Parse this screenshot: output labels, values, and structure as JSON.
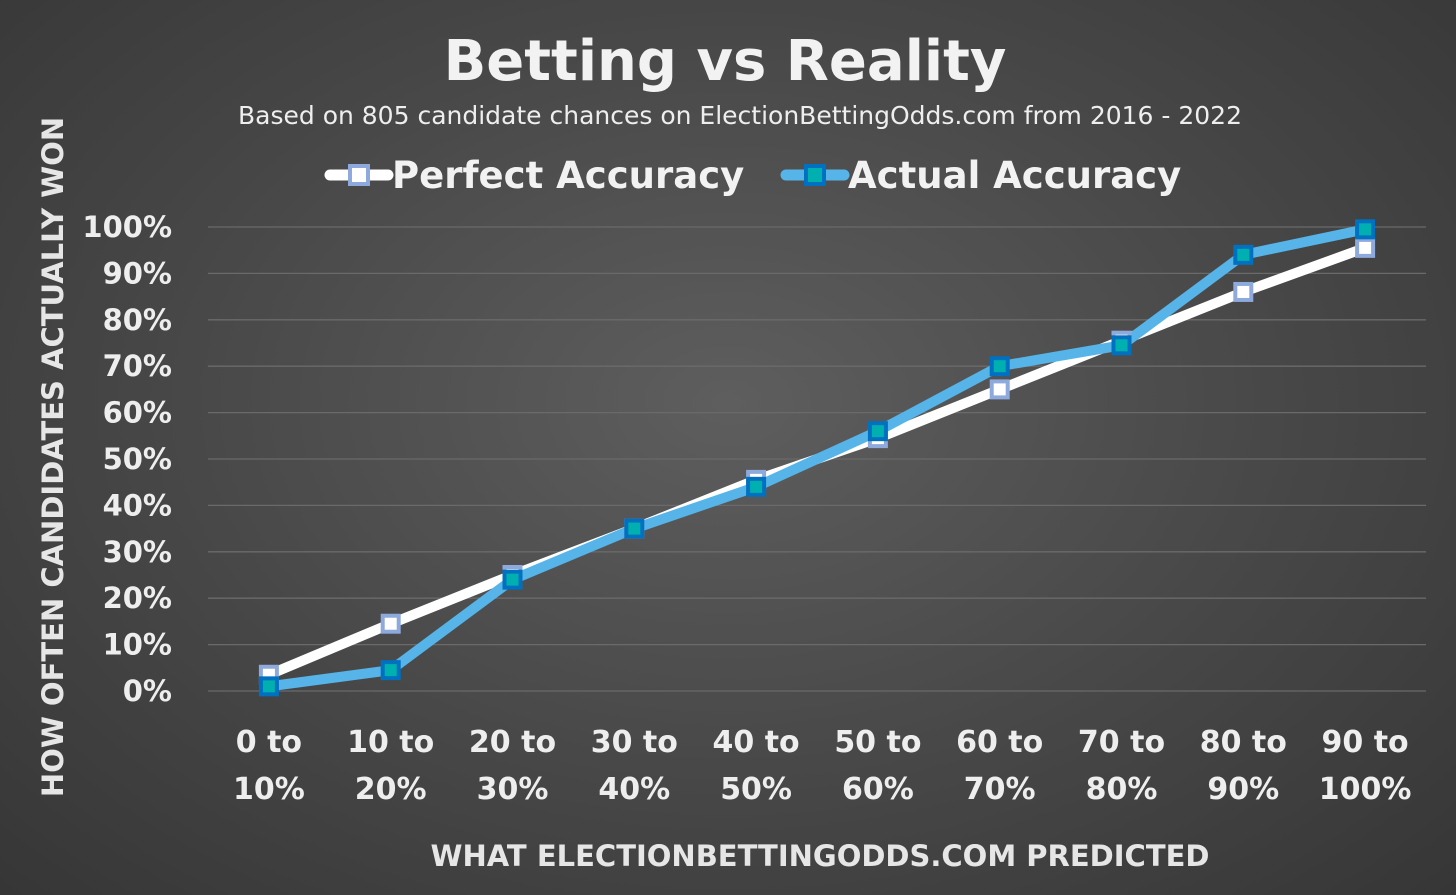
{
  "chart_data": {
    "type": "line",
    "title": "Betting vs Reality",
    "subtitle": "Based on 805 candidate chances on ElectionBettingOdds.com from 2016 - 2022",
    "xlabel": "WHAT ELECTIONBETTINGODDS.COM PREDICTED",
    "ylabel": "HOW OFTEN CANDIDATES ACTUALLY WON",
    "categories": [
      [
        "0 to",
        "10%"
      ],
      [
        "10 to",
        "20%"
      ],
      [
        "20 to",
        "30%"
      ],
      [
        "30 to",
        "40%"
      ],
      [
        "40 to",
        "50%"
      ],
      [
        "50 to",
        "60%"
      ],
      [
        "60 to",
        "70%"
      ],
      [
        "70 to",
        "80%"
      ],
      [
        "80 to",
        "90%"
      ],
      [
        "90 to",
        "100%"
      ]
    ],
    "ylim": [
      0,
      100
    ],
    "yticks": [
      "0%",
      "10%",
      "20%",
      "30%",
      "40%",
      "50%",
      "60%",
      "70%",
      "80%",
      "90%",
      "100%"
    ],
    "grid": true,
    "legend_position": "top",
    "series": [
      {
        "name": "Perfect Accuracy",
        "values": [
          3.5,
          14.5,
          25,
          35,
          45.5,
          54.5,
          65,
          75.5,
          86,
          95.5
        ],
        "color": "#ffffff",
        "marker_color": "#8ea9db"
      },
      {
        "name": "Actual Accuracy",
        "values": [
          1,
          4.5,
          24,
          35,
          44,
          56,
          70,
          74.5,
          94,
          99.5
        ],
        "color": "#56b4e9",
        "marker_color": "#0070c0"
      }
    ]
  }
}
